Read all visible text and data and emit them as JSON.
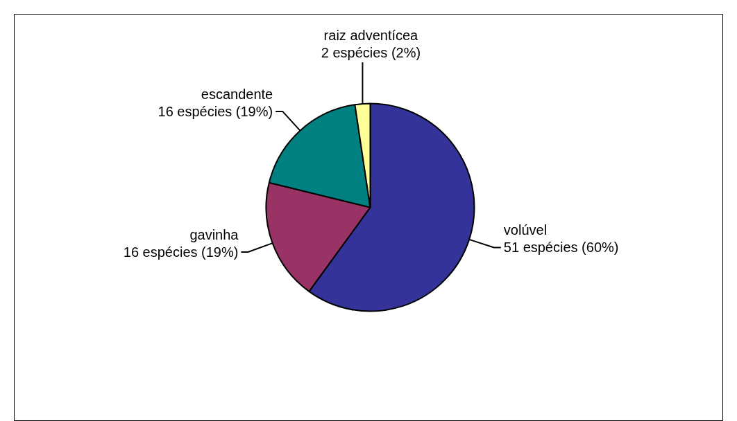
{
  "chart_data": {
    "type": "pie",
    "categories": [
      "volúvel",
      "gavinha",
      "escandente",
      "raiz adventícea"
    ],
    "values": [
      51,
      16,
      16,
      2
    ],
    "colors": [
      "#333399",
      "#993366",
      "#008080",
      "#ffff99"
    ],
    "value_labels": [
      "51 espécies (60%)",
      "16 espécies (19%)",
      "16 espécies (19%)",
      "2 espécies (2%)"
    ]
  }
}
